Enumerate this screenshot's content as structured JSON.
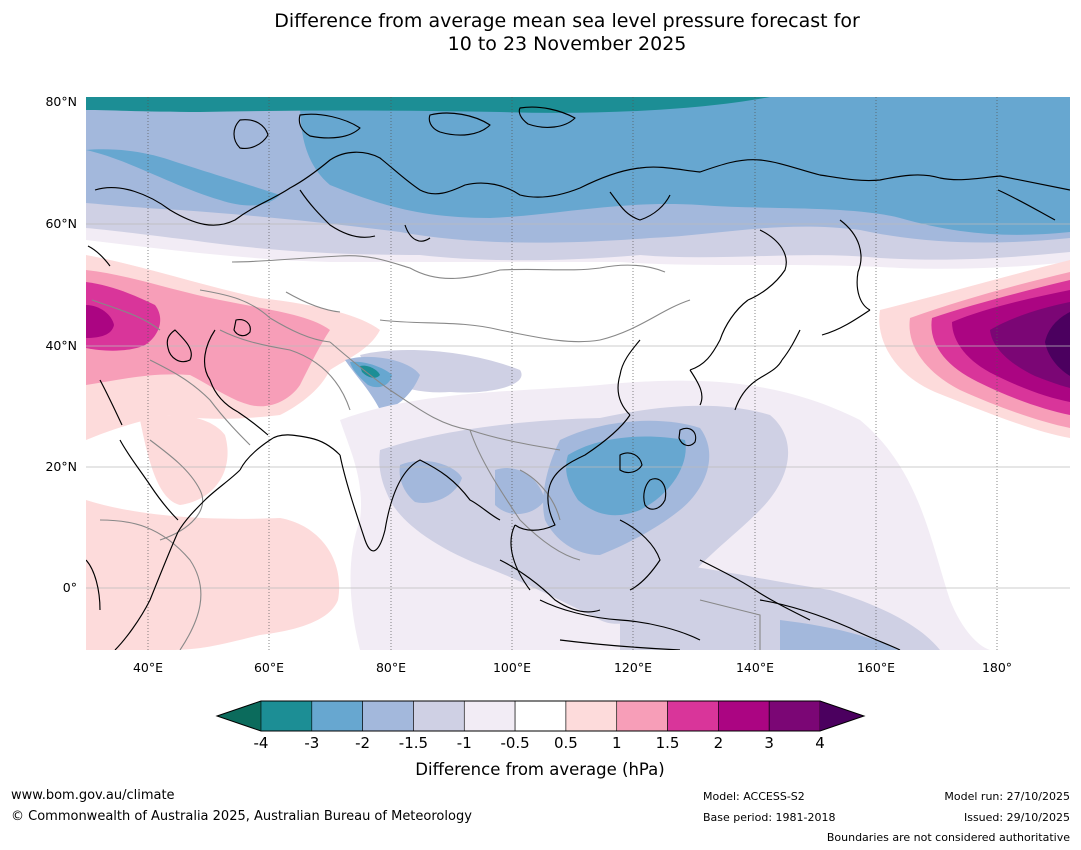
{
  "title": {
    "line1": "Difference from average mean sea level pressure forecast for",
    "line2": "10 to 23 November 2025"
  },
  "map": {
    "lon_labels": [
      "40°E",
      "60°E",
      "80°E",
      "100°E",
      "120°E",
      "140°E",
      "160°E",
      "180°"
    ],
    "lat_labels": [
      "80°N",
      "60°N",
      "40°N",
      "20°N",
      "0°"
    ],
    "lon_range": [
      30,
      190
    ],
    "lat_range": [
      -10,
      80
    ]
  },
  "colorbar": {
    "title": "Difference from average (hPa)",
    "ticks": [
      "-4",
      "-3",
      "-2",
      "-1.5",
      "-1",
      "-0.5",
      "0.5",
      "1",
      "1.5",
      "2",
      "3",
      "4"
    ],
    "colors": {
      "below_min": "#0b6b5c",
      "bins": [
        "#1c8e95",
        "#67a7d0",
        "#a3b8dc",
        "#cfd0e4",
        "#f2ecf5",
        "#ffffff",
        "#fddbdb",
        "#f79eb8",
        "#d9359a",
        "#ab0582",
        "#7b0675"
      ],
      "above_max": "#4b005f"
    }
  },
  "footer": {
    "url": "www.bom.gov.au/climate",
    "copyright": "© Commonwealth of Australia 2025, Australian Bureau of Meteorology",
    "model": "Model: ACCESS-S2",
    "base_period": "Base period: 1981-2018",
    "model_run": "Model run: 27/10/2025",
    "issued": "Issued: 29/10/2025",
    "disclaimer": "Boundaries are not considered authoritative"
  }
}
